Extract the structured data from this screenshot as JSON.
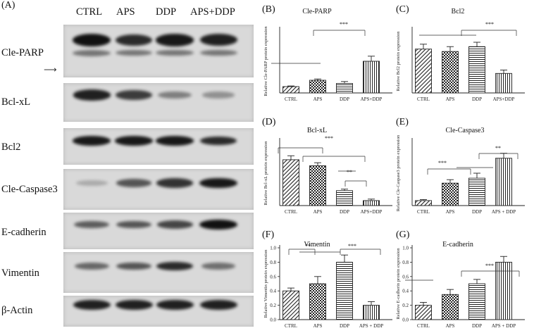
{
  "figure": {
    "main_letter": "(A)",
    "lanes": [
      "CTRL",
      "APS",
      "DDP",
      "APS+DDP"
    ],
    "blot_rows": [
      {
        "label": "Cle-PARP",
        "intensities": [
          1.0,
          0.85,
          0.95,
          0.9
        ]
      },
      {
        "label": "Bcl-xL",
        "intensities": [
          0.9,
          0.75,
          0.35,
          0.25
        ]
      },
      {
        "label": "Bcl2",
        "intensities": [
          0.95,
          0.95,
          0.95,
          0.85
        ]
      },
      {
        "label": "Cle-Caspase3",
        "intensities": [
          0.1,
          0.6,
          0.8,
          0.95
        ]
      },
      {
        "label": "E-cadherin",
        "intensities": [
          0.55,
          0.6,
          0.7,
          1.0
        ]
      },
      {
        "label": "Vimentin",
        "intensities": [
          0.5,
          0.6,
          0.85,
          0.45
        ]
      },
      {
        "label": "β-Actin",
        "intensities": [
          0.9,
          0.9,
          0.9,
          0.9
        ]
      }
    ],
    "band_color": "#111111",
    "bar_color": "#222222"
  },
  "chart_data": [
    {
      "letter": "(B)",
      "type": "bar",
      "title": "Cle-PARP",
      "ylabel": "Relative Cle-PARP protein expression",
      "categories": [
        "CTRL",
        "APS",
        "DDP",
        "APS+DDP"
      ],
      "values": [
        0.1,
        0.2,
        0.15,
        0.5
      ],
      "errors": [
        0.01,
        0.02,
        0.03,
        0.08
      ],
      "patterns": [
        "diag",
        "cross",
        "hlines",
        "vlines"
      ],
      "ylim": [
        0,
        1.0
      ],
      "yticks": [],
      "significance": [
        "***"
      ]
    },
    {
      "letter": "(C)",
      "type": "bar",
      "title": "Bcl2",
      "ylabel": "Relative Bcl2 protein expression",
      "categories": [
        "CTRL",
        "APS",
        "DDP",
        "APS+DDP"
      ],
      "values": [
        0.9,
        0.85,
        0.95,
        0.4
      ],
      "errors": [
        0.1,
        0.1,
        0.09,
        0.07
      ],
      "patterns": [
        "diag",
        "cross",
        "hlines",
        "vlines"
      ],
      "ylim": [
        0,
        1.3
      ],
      "yticks": [],
      "significance": [
        "***"
      ]
    },
    {
      "letter": "(D)",
      "type": "bar",
      "title": "Bcl-xL",
      "ylabel": "Relative Bcl-xL protein expression",
      "categories": [
        "CTRL",
        "APS",
        "DDP",
        "APS+DDP"
      ],
      "values": [
        0.92,
        0.8,
        0.3,
        0.1
      ],
      "errors": [
        0.08,
        0.06,
        0.03,
        0.03
      ],
      "patterns": [
        "diag",
        "cross",
        "hlines",
        "vlines"
      ],
      "ylim": [
        0,
        1.3
      ],
      "yticks": [],
      "significance": [
        "***",
        "**"
      ]
    },
    {
      "letter": "(E)",
      "type": "bar",
      "title": "Cle-Caspase3",
      "ylabel": "Relative Cle-Caspase3 protein expression",
      "categories": [
        "CTRL",
        "APS",
        "DDP",
        "APS + DDP"
      ],
      "values": [
        0.1,
        0.45,
        0.55,
        0.95
      ],
      "errors": [
        0.02,
        0.07,
        0.1,
        0.1
      ],
      "patterns": [
        "diag",
        "cross",
        "hlines",
        "vlines"
      ],
      "ylim": [
        0,
        1.3
      ],
      "yticks": [],
      "significance": [
        "***",
        "**"
      ]
    },
    {
      "letter": "(F)",
      "type": "bar",
      "title": "Vimentin",
      "ylabel": "Relative Vimentin protein expression",
      "categories": [
        "CTRL",
        "APS",
        "DDP",
        "APS + DDP"
      ],
      "values": [
        0.4,
        0.5,
        0.8,
        0.2
      ],
      "errors": [
        0.04,
        0.1,
        0.1,
        0.05
      ],
      "patterns": [
        "diag",
        "cross",
        "hlines",
        "vlines"
      ],
      "ylim": [
        0,
        1.0
      ],
      "yticks": [
        "0.0",
        "0.2",
        "0.4",
        "0.6",
        "0.8",
        "1.0"
      ],
      "significance": [
        "**",
        "***"
      ]
    },
    {
      "letter": "(G)",
      "type": "bar",
      "title": "E-cadherin",
      "ylabel": "Relative E-cadherin protein expression",
      "categories": [
        "CTRL",
        "APS",
        "DDP",
        "APS + DDP"
      ],
      "values": [
        0.2,
        0.35,
        0.5,
        0.8
      ],
      "errors": [
        0.04,
        0.07,
        0.06,
        0.08
      ],
      "patterns": [
        "diag",
        "cross",
        "hlines",
        "vlines"
      ],
      "ylim": [
        0,
        1.0
      ],
      "yticks": [
        "0.0",
        "0.2",
        "0.4",
        "0.6",
        "0.8",
        "1.0"
      ],
      "significance": [
        "***"
      ]
    }
  ]
}
